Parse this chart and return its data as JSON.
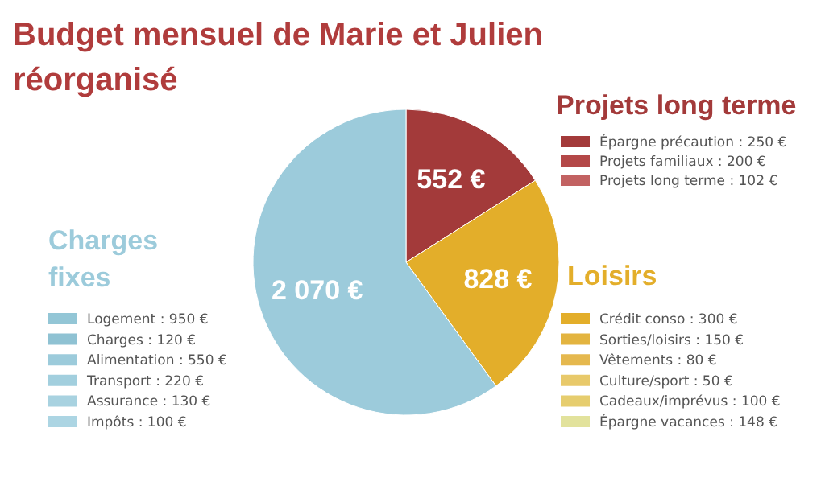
{
  "chart_data": [
    {
      "type": "pie",
      "title": "Budget mensuel de Marie et Julien réorganisé",
      "categories": [
        "Projets long terme",
        "Loisirs",
        "Charges fixes"
      ],
      "values": [
        552,
        828,
        2070
      ],
      "colors": [
        "#a33a3a",
        "#e3ae2a",
        "#9ccbdb"
      ],
      "value_labels": [
        "552 €",
        "828 €",
        "2 070 €"
      ]
    },
    {
      "type": "other",
      "categories": [
        "Épargne précaution : 250 €",
        "Projets familiaux : 200 €",
        "Projets long terme : 102 €"
      ],
      "colors": [
        "#a33a3a",
        "#b44848",
        "#c26262"
      ]
    },
    {
      "type": "other",
      "categories": [
        "Crédit conso : 300 €",
        "Sorties/loisirs : 150 €",
        "Vêtements : 80 €",
        "Culture/sport : 50 €",
        "Cadeaux/imprévus : 100 €",
        "Épargne vacances : 148 €"
      ],
      "colors": [
        "#e3ae2a",
        "#e3b440",
        "#e5b84e",
        "#e8c96a",
        "#e6cd6e",
        "#e2e29c"
      ]
    },
    {
      "type": "other",
      "categories": [
        "Logement : 950 €",
        "Charges : 120 €",
        "Alimentation : 550 €",
        "Transport : 220 €",
        "Assurance : 130 €",
        "Impôts : 100 €"
      ],
      "colors": [
        "#93c6d6",
        "#8fc2d3",
        "#9ccbdb",
        "#a2cfde",
        "#a8d2e0",
        "#acd5e3"
      ]
    }
  ]
}
